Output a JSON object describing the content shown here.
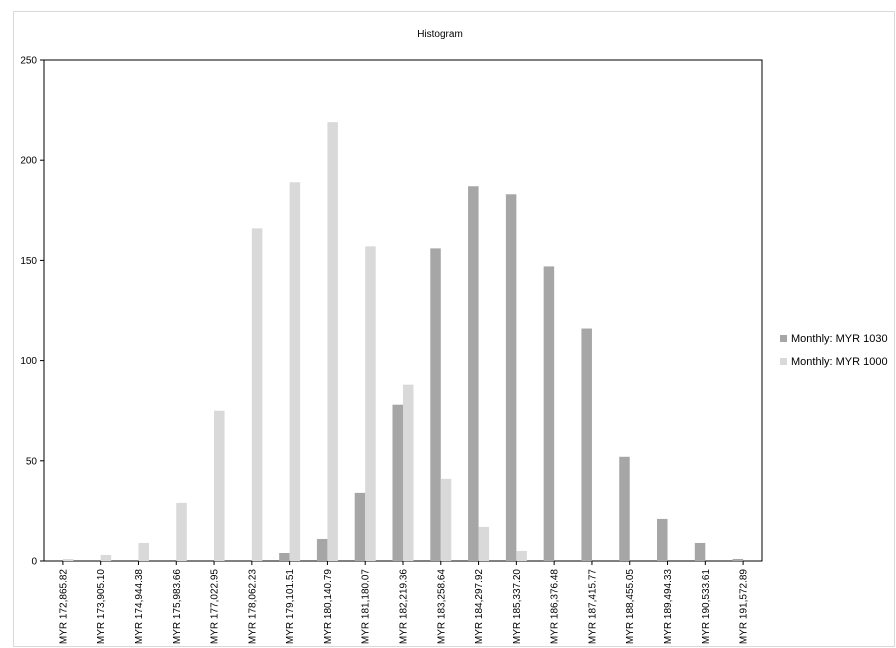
{
  "chart_data": {
    "type": "bar",
    "title": "Histogram",
    "xlabel": "",
    "ylabel": "",
    "ylim": [
      0,
      250
    ],
    "yticks": [
      0,
      50,
      100,
      150,
      200,
      250
    ],
    "grid": false,
    "legend_position": "right",
    "categories": [
      "MYR 172,865.82",
      "MYR 173,905.10",
      "MYR 174,944.38",
      "MYR 175,983.66",
      "MYR 177,022.95",
      "MYR 178,062.23",
      "MYR 179,101.51",
      "MYR 180,140.79",
      "MYR 181,180.07",
      "MYR 182,219.36",
      "MYR 183,258.64",
      "MYR 184,297.92",
      "MYR 185,337.20",
      "MYR 186,376.48",
      "MYR 187,415.77",
      "MYR 188,455.05",
      "MYR 189,494.33",
      "MYR 190,533.61",
      "MYR 191,572.89"
    ],
    "series": [
      {
        "name": "Monthly: MYR 1030",
        "color": "#a6a6a6",
        "values": [
          0,
          0,
          0,
          0,
          0,
          0,
          4,
          11,
          34,
          78,
          156,
          187,
          183,
          147,
          116,
          52,
          21,
          9,
          1
        ]
      },
      {
        "name": "Monthly: MYR 1000",
        "color": "#d9d9d9",
        "values": [
          1,
          3,
          9,
          29,
          75,
          166,
          189,
          219,
          157,
          88,
          41,
          17,
          5,
          0,
          0,
          0,
          0,
          0,
          0
        ]
      }
    ]
  }
}
